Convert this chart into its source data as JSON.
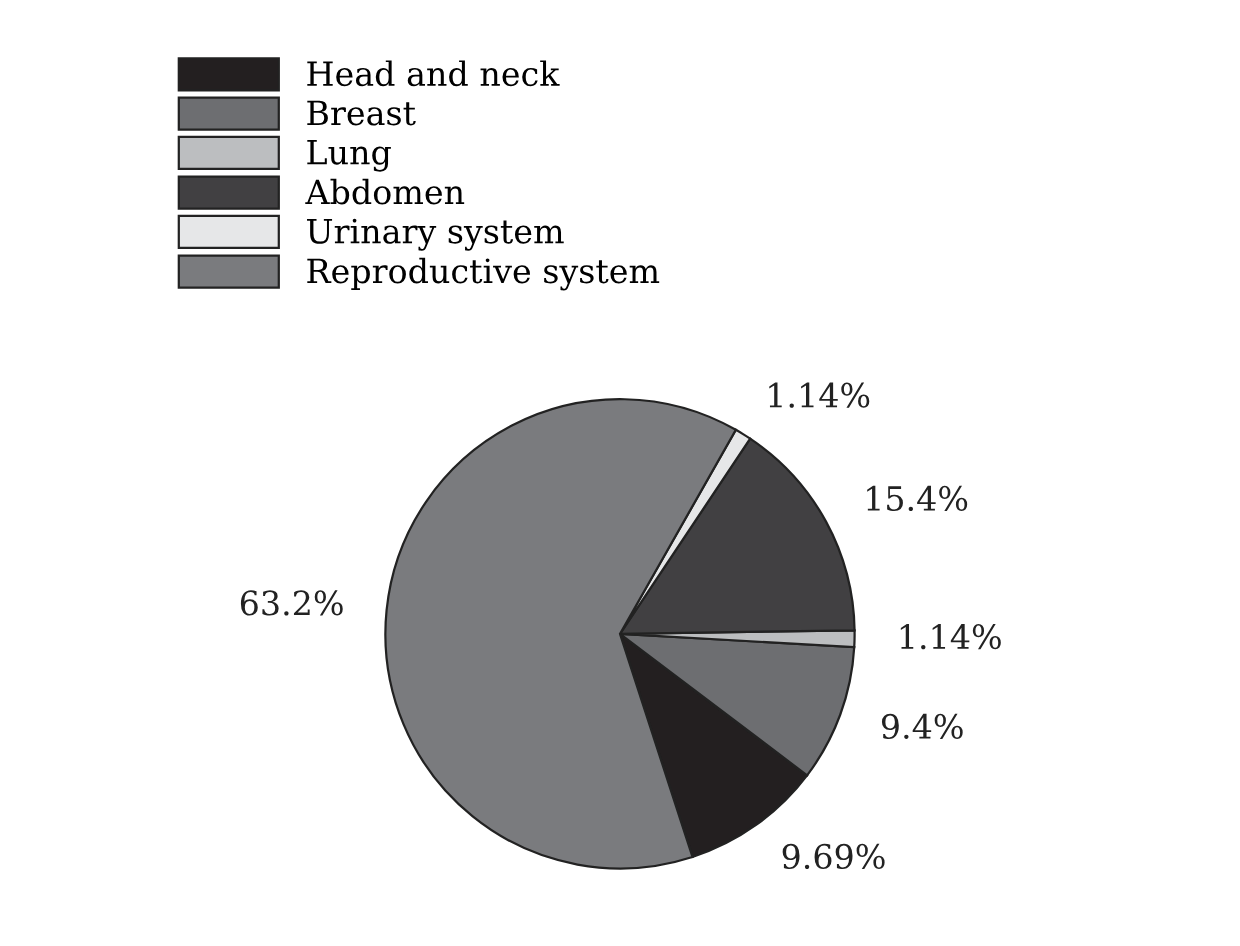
{
  "chart_data": {
    "type": "pie",
    "categories": [
      "Head and neck",
      "Breast",
      "Lung",
      "Abdomen",
      "Urinary system",
      "Reproductive system"
    ],
    "values": [
      9.69,
      9.4,
      1.14,
      15.4,
      1.14,
      63.2
    ],
    "value_labels": [
      "9.69%",
      "9.4%",
      "1.14%",
      "15.4%",
      "1.14%",
      "63.2%"
    ],
    "colors": [
      "#231f20",
      "#6d6e71",
      "#bcbec0",
      "#414042",
      "#e6e7e8",
      "#7a7b7e"
    ],
    "legend": "top left"
  }
}
